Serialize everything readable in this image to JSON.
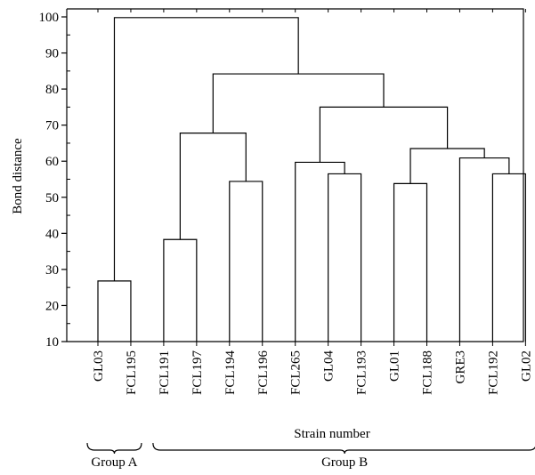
{
  "chart_data": {
    "type": "dendrogram",
    "ylabel": "Bond distance",
    "xlabel": "Strain number",
    "ylim": [
      10,
      100
    ],
    "yticks": [
      10,
      20,
      30,
      40,
      50,
      60,
      70,
      80,
      90,
      100
    ],
    "leaves": [
      "GL03",
      "FCL195",
      "FCL191",
      "FCL197",
      "FCL194",
      "FCL196",
      "FCL265",
      "GL04",
      "FCL193",
      "GL01",
      "FCL188",
      "GRE3",
      "FCL192",
      "GL02"
    ],
    "merges": [
      {
        "a": 0,
        "b": 1,
        "height": 26.8
      },
      {
        "a": 2,
        "b": 3,
        "height": 38.3
      },
      {
        "a": 4,
        "b": 5,
        "height": 54.4
      },
      {
        "a": 7,
        "b": 8,
        "height": 56.5
      },
      {
        "a": 9,
        "b": 10,
        "height": 53.8
      },
      {
        "a": 12,
        "b": 13,
        "height": 56.5
      },
      {
        "a": "m1",
        "b": "m2",
        "height": 67.8
      },
      {
        "a": 6,
        "b": "m3",
        "height": 59.7
      },
      {
        "a": 11,
        "b": "m5",
        "height": 60.9
      },
      {
        "a": "m4",
        "b": "m8",
        "height": 63.5
      },
      {
        "a": "m7",
        "b": "m9",
        "height": 75.0
      },
      {
        "a": "m6",
        "b": "m10",
        "height": 84.2
      },
      {
        "a": "m0",
        "b": "m11",
        "height": 99.8
      }
    ],
    "groups": [
      {
        "label": "Group A",
        "from": 0,
        "to": 1
      },
      {
        "label": "Group B",
        "from": 2,
        "to": 13
      }
    ]
  }
}
